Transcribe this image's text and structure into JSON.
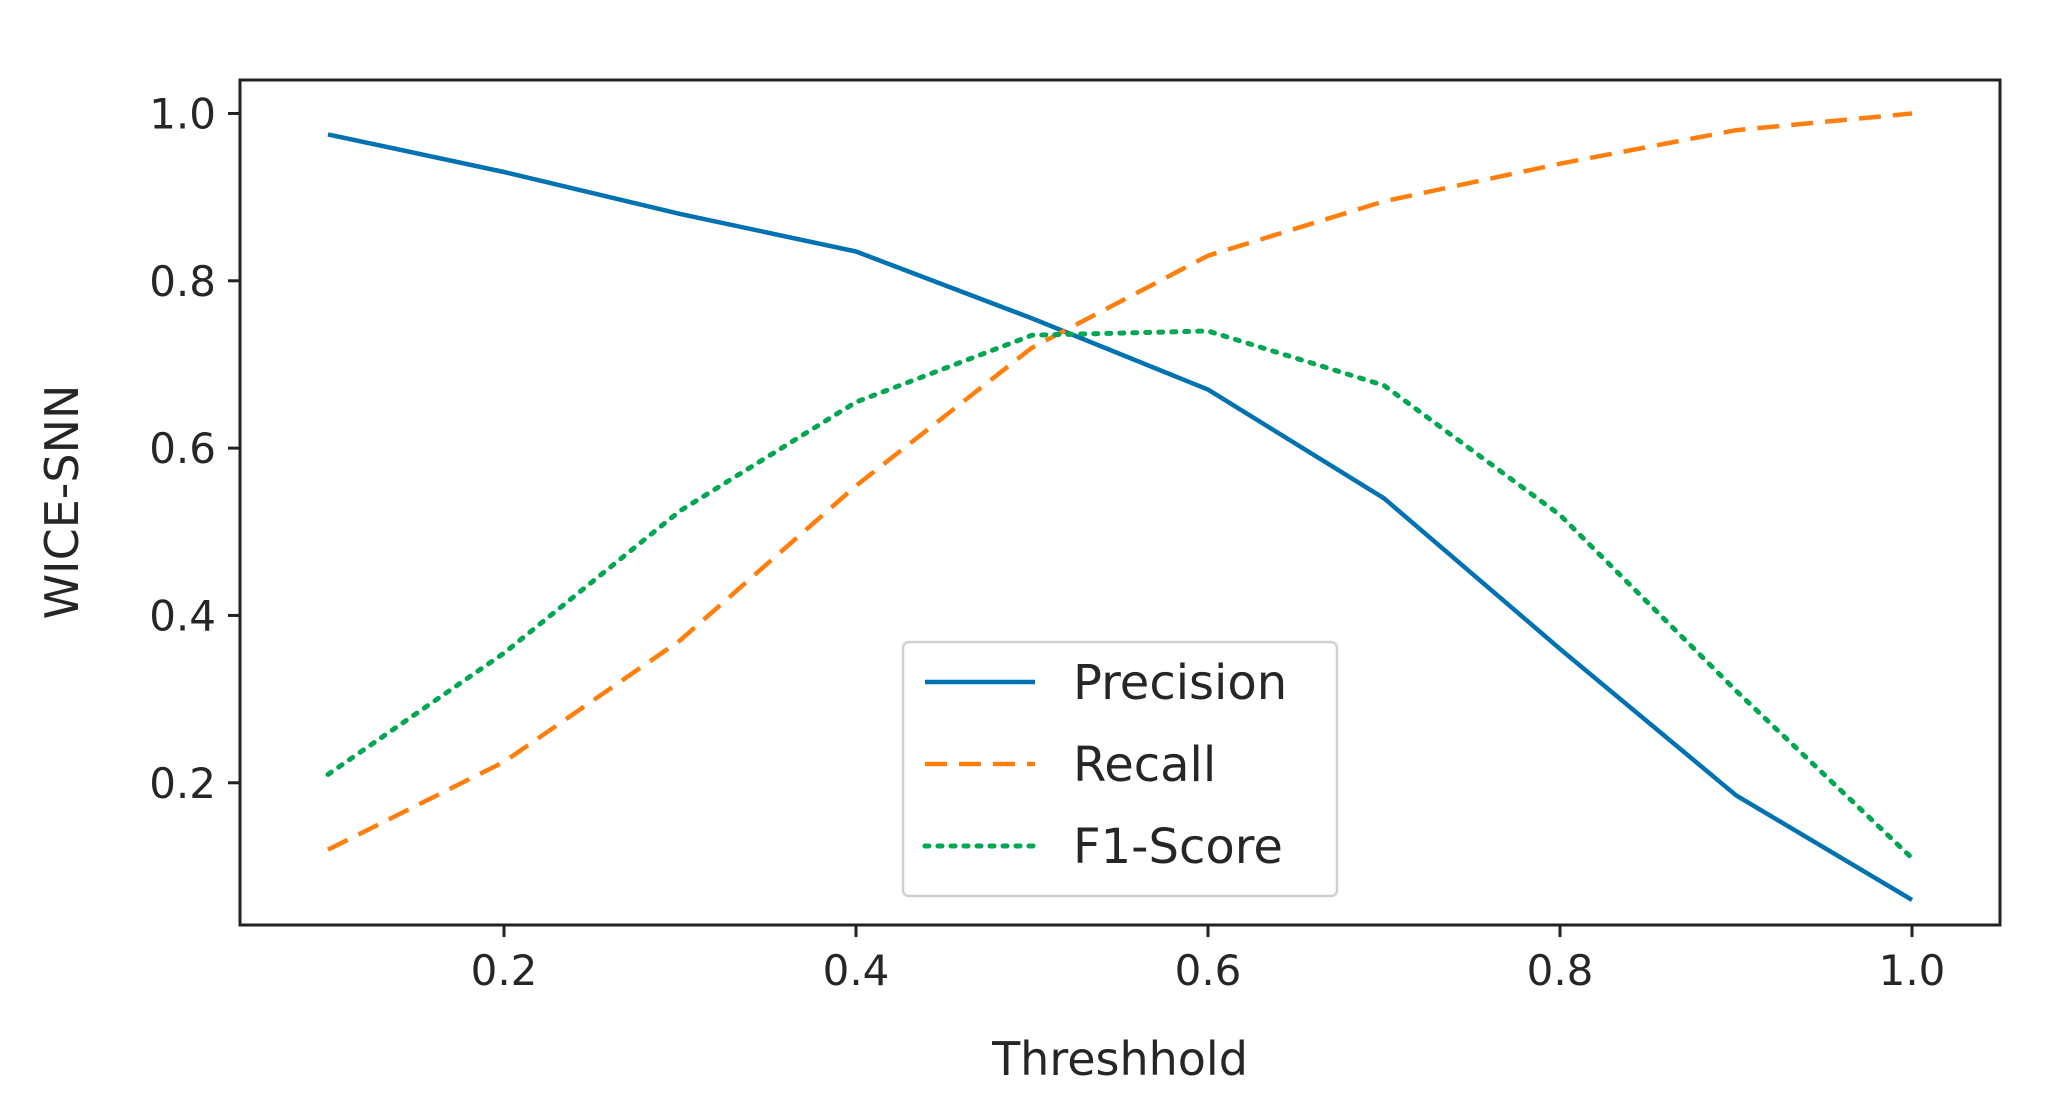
{
  "chart_data": {
    "type": "line",
    "title": "",
    "xlabel": "Threshhold",
    "ylabel": "WICE-SNN",
    "x": [
      0.1,
      0.2,
      0.3,
      0.4,
      0.5,
      0.6,
      0.7,
      0.8,
      0.9,
      1.0
    ],
    "xlim": [
      0.05,
      1.05
    ],
    "ylim": [
      0.03,
      1.04
    ],
    "xticks": [
      0.2,
      0.4,
      0.6,
      0.8,
      1.0
    ],
    "xtick_labels": [
      "0.2",
      "0.4",
      "0.6",
      "0.8",
      "1.0"
    ],
    "yticks": [
      0.2,
      0.4,
      0.6,
      0.8,
      1.0
    ],
    "ytick_labels": [
      "0.2",
      "0.4",
      "0.6",
      "0.8",
      "1.0"
    ],
    "grid": false,
    "legend_position": "bottom-center",
    "series": [
      {
        "name": "Precision",
        "style": "solid",
        "color": "#0072b2",
        "values": [
          0.975,
          0.93,
          0.88,
          0.835,
          0.755,
          0.67,
          0.54,
          0.36,
          0.185,
          0.06
        ]
      },
      {
        "name": "Recall",
        "style": "dashed",
        "color": "#ff7f0e",
        "values": [
          0.12,
          0.225,
          0.37,
          0.555,
          0.72,
          0.83,
          0.895,
          0.94,
          0.98,
          1.0
        ]
      },
      {
        "name": "F1-Score",
        "style": "dotted",
        "color": "#00a651",
        "values": [
          0.21,
          0.355,
          0.525,
          0.655,
          0.735,
          0.74,
          0.675,
          0.52,
          0.31,
          0.11
        ]
      }
    ]
  }
}
